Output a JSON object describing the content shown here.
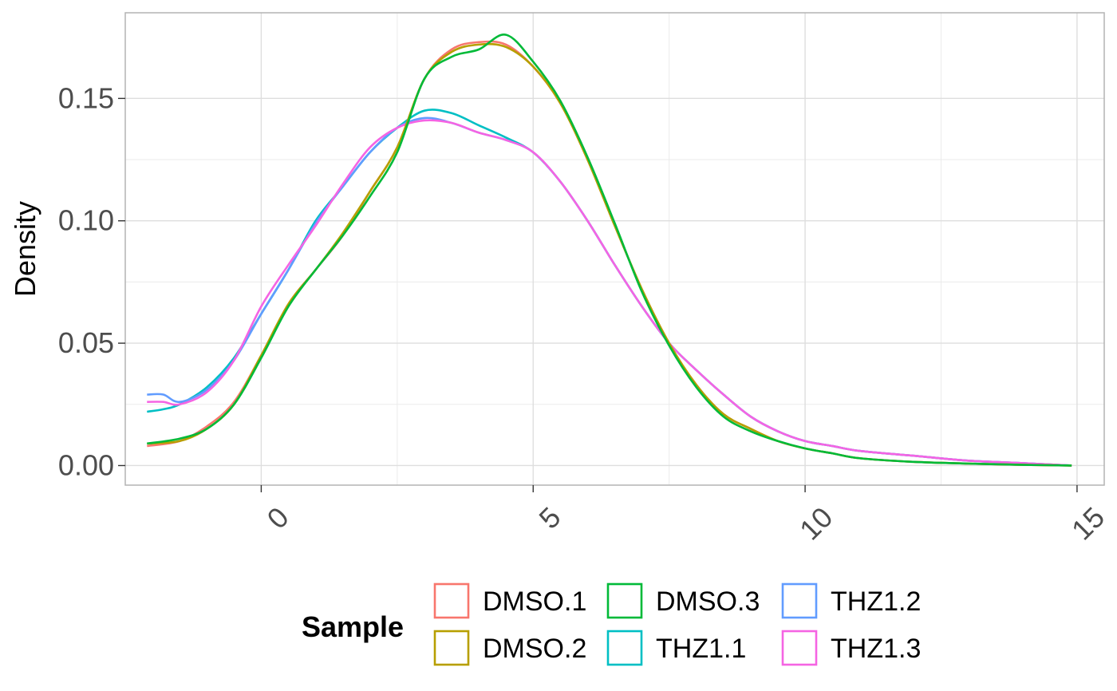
{
  "chart_data": {
    "type": "line",
    "title": "",
    "xlabel": "",
    "ylabel": "Density",
    "xlim": [
      -2.5,
      15.5
    ],
    "ylim": [
      -0.008,
      0.185
    ],
    "x_ticks": [
      0,
      5,
      10,
      15
    ],
    "x_tick_labels": [
      "0",
      "5",
      "10",
      "15"
    ],
    "y_ticks": [
      0.0,
      0.05,
      0.1,
      0.15
    ],
    "y_tick_labels": [
      "0.00",
      "0.05",
      "0.10",
      "0.15"
    ],
    "grid": true,
    "legend": {
      "title": "Sample",
      "position": "bottom"
    },
    "series": [
      {
        "name": "DMSO.1",
        "color": "#F8766D",
        "x": [
          -2.1,
          -1.5,
          -1.0,
          -0.5,
          0.0,
          0.5,
          1.0,
          1.5,
          2.0,
          2.5,
          3.0,
          3.5,
          4.0,
          4.5,
          5.0,
          5.5,
          6.0,
          6.5,
          7.0,
          7.5,
          8.0,
          8.5,
          9.0,
          9.5,
          10.0,
          10.5,
          11.0,
          12.0,
          13.0,
          14.0,
          14.9
        ],
        "y": [
          0.008,
          0.01,
          0.016,
          0.026,
          0.045,
          0.066,
          0.08,
          0.094,
          0.112,
          0.13,
          0.158,
          0.17,
          0.173,
          0.172,
          0.163,
          0.148,
          0.125,
          0.098,
          0.072,
          0.05,
          0.033,
          0.021,
          0.015,
          0.01,
          0.007,
          0.005,
          0.003,
          0.0015,
          0.0008,
          0.0003,
          0.0
        ]
      },
      {
        "name": "DMSO.2",
        "color": "#B79F00",
        "x": [
          -2.1,
          -1.5,
          -1.0,
          -0.5,
          0.0,
          0.5,
          1.0,
          1.5,
          2.0,
          2.5,
          3.0,
          3.5,
          4.0,
          4.5,
          5.0,
          5.5,
          6.0,
          6.5,
          7.0,
          7.5,
          8.0,
          8.5,
          9.0,
          9.5,
          10.0,
          10.5,
          11.0,
          12.0,
          13.0,
          14.0,
          14.9
        ],
        "y": [
          0.009,
          0.01,
          0.015,
          0.025,
          0.045,
          0.066,
          0.08,
          0.095,
          0.112,
          0.13,
          0.158,
          0.169,
          0.172,
          0.171,
          0.163,
          0.148,
          0.125,
          0.098,
          0.072,
          0.05,
          0.033,
          0.021,
          0.015,
          0.01,
          0.007,
          0.005,
          0.003,
          0.0015,
          0.0008,
          0.0003,
          0.0
        ]
      },
      {
        "name": "DMSO.3",
        "color": "#00BA38",
        "x": [
          -2.1,
          -1.5,
          -1.0,
          -0.5,
          0.0,
          0.5,
          1.0,
          1.5,
          2.0,
          2.5,
          3.0,
          3.5,
          4.0,
          4.5,
          5.0,
          5.5,
          6.0,
          6.5,
          7.0,
          7.5,
          8.0,
          8.5,
          9.0,
          9.5,
          10.0,
          10.5,
          11.0,
          12.0,
          13.0,
          14.0,
          14.9
        ],
        "y": [
          0.009,
          0.011,
          0.015,
          0.025,
          0.044,
          0.065,
          0.08,
          0.094,
          0.11,
          0.128,
          0.158,
          0.167,
          0.17,
          0.176,
          0.165,
          0.149,
          0.126,
          0.099,
          0.071,
          0.049,
          0.032,
          0.02,
          0.014,
          0.01,
          0.007,
          0.005,
          0.003,
          0.0015,
          0.0008,
          0.0003,
          0.0
        ]
      },
      {
        "name": "THZ1.1",
        "color": "#00BFC4",
        "x": [
          -2.1,
          -1.8,
          -1.5,
          -1.0,
          -0.5,
          0.0,
          0.5,
          1.0,
          1.5,
          2.0,
          2.5,
          3.0,
          3.5,
          4.0,
          4.5,
          5.0,
          5.5,
          6.0,
          6.5,
          7.0,
          7.5,
          8.0,
          8.5,
          9.0,
          9.5,
          10.0,
          10.5,
          11.0,
          12.0,
          13.0,
          14.0,
          14.9
        ],
        "y": [
          0.022,
          0.023,
          0.025,
          0.032,
          0.044,
          0.062,
          0.08,
          0.1,
          0.114,
          0.128,
          0.138,
          0.145,
          0.144,
          0.139,
          0.134,
          0.128,
          0.116,
          0.1,
          0.082,
          0.065,
          0.05,
          0.039,
          0.029,
          0.02,
          0.014,
          0.01,
          0.008,
          0.006,
          0.004,
          0.002,
          0.001,
          0.0
        ]
      },
      {
        "name": "THZ1.2",
        "color": "#619CFF",
        "x": [
          -2.1,
          -1.8,
          -1.5,
          -1.0,
          -0.5,
          0.0,
          0.5,
          1.0,
          1.5,
          2.0,
          2.5,
          3.0,
          3.5,
          4.0,
          4.5,
          5.0,
          5.5,
          6.0,
          6.5,
          7.0,
          7.5,
          8.0,
          8.5,
          9.0,
          9.5,
          10.0,
          10.5,
          11.0,
          12.0,
          13.0,
          14.0,
          14.9
        ],
        "y": [
          0.029,
          0.029,
          0.026,
          0.031,
          0.043,
          0.062,
          0.08,
          0.099,
          0.114,
          0.128,
          0.138,
          0.142,
          0.14,
          0.136,
          0.133,
          0.128,
          0.116,
          0.1,
          0.082,
          0.065,
          0.05,
          0.039,
          0.029,
          0.02,
          0.014,
          0.01,
          0.008,
          0.006,
          0.004,
          0.002,
          0.001,
          0.0
        ]
      },
      {
        "name": "THZ1.3",
        "color": "#F564E3",
        "x": [
          -2.1,
          -1.8,
          -1.5,
          -1.0,
          -0.5,
          0.0,
          0.5,
          1.0,
          1.5,
          2.0,
          2.5,
          3.0,
          3.5,
          4.0,
          4.5,
          5.0,
          5.5,
          6.0,
          6.5,
          7.0,
          7.5,
          8.0,
          8.5,
          9.0,
          9.5,
          10.0,
          10.5,
          11.0,
          12.0,
          13.0,
          14.0,
          14.9
        ],
        "y": [
          0.026,
          0.026,
          0.025,
          0.03,
          0.043,
          0.065,
          0.082,
          0.098,
          0.115,
          0.13,
          0.138,
          0.141,
          0.14,
          0.136,
          0.133,
          0.128,
          0.116,
          0.1,
          0.082,
          0.065,
          0.05,
          0.039,
          0.029,
          0.02,
          0.014,
          0.01,
          0.008,
          0.006,
          0.004,
          0.002,
          0.001,
          0.0
        ]
      }
    ]
  }
}
